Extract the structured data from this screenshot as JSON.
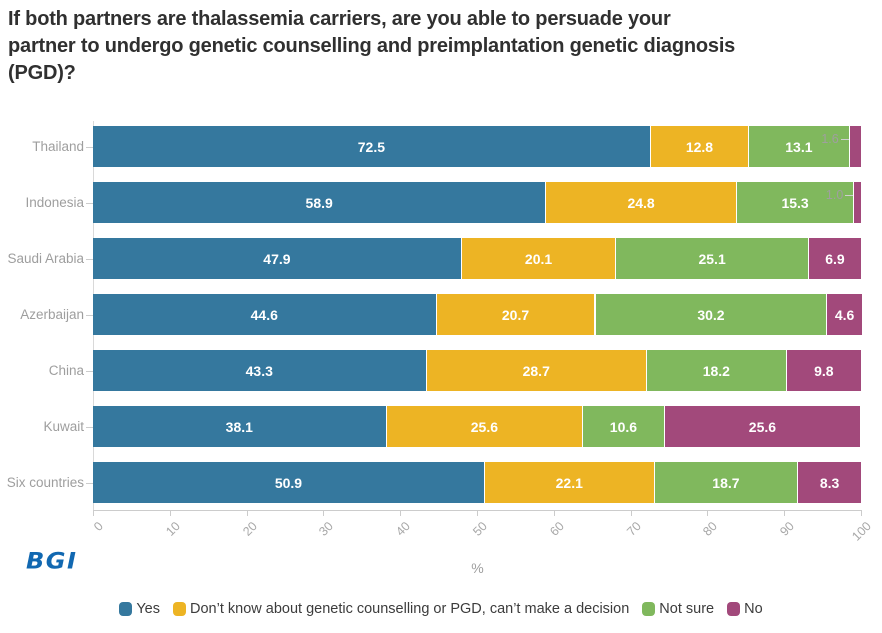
{
  "title": {
    "lines": [
      "If both partners are thalassemia carriers, are you able to persuade your",
      "partner to undergo genetic counselling and preimplantation genetic diagnosis",
      "(PGD)?"
    ]
  },
  "logo": {
    "text": "BGI",
    "color": "#1168b1"
  },
  "chart_data": {
    "type": "bar",
    "orientation": "horizontal",
    "stacked": true,
    "title": "If both partners are thalassemia carriers, are you able to persuade your partner to undergo genetic counselling and preimplantation genetic diagnosis (PGD)?",
    "categories": [
      "Thailand",
      "Indonesia",
      "Saudi Arabia",
      "Azerbaijan",
      "China",
      "Kuwait",
      "Six countries"
    ],
    "series": [
      {
        "name": "Yes",
        "color": "#35789e",
        "values": [
          72.5,
          58.9,
          47.9,
          44.6,
          43.3,
          38.1,
          50.9
        ],
        "labels": [
          "72.5",
          "58.9",
          "47.9",
          "44.6",
          "43.3",
          "38.1",
          "50.9"
        ]
      },
      {
        "name": "Don’t know about genetic counselling or PGD, can’t make a decision",
        "color": "#edb424",
        "values": [
          12.8,
          24.8,
          20.1,
          20.7,
          28.7,
          25.6,
          22.1
        ],
        "labels": [
          "12.8",
          "24.8",
          "20.1",
          "20.7",
          "28.7",
          "25.6",
          "22.1"
        ]
      },
      {
        "name": "Not sure",
        "color": "#80b85d",
        "values": [
          13.1,
          15.3,
          25.1,
          30.2,
          18.2,
          10.6,
          18.7
        ],
        "labels": [
          "13.1",
          "15.3",
          "25.1",
          "30.2",
          "18.2",
          "10.6",
          "18.7"
        ]
      },
      {
        "name": "No",
        "color": "#a2497b",
        "values": [
          1.6,
          1.0,
          6.9,
          4.6,
          9.8,
          25.6,
          8.3
        ],
        "labels": [
          "1.6",
          "1.0",
          "6.9",
          "4.6",
          "9.8",
          "25.6",
          "8.3"
        ]
      }
    ],
    "xlabel": "%",
    "xlim": [
      0,
      100
    ],
    "xticks": [
      0,
      10,
      20,
      30,
      40,
      50,
      60,
      70,
      80,
      90,
      100
    ],
    "tick_label_rotation": -45,
    "legend_position": "bottom",
    "grid": false,
    "small_label_threshold": 3
  }
}
